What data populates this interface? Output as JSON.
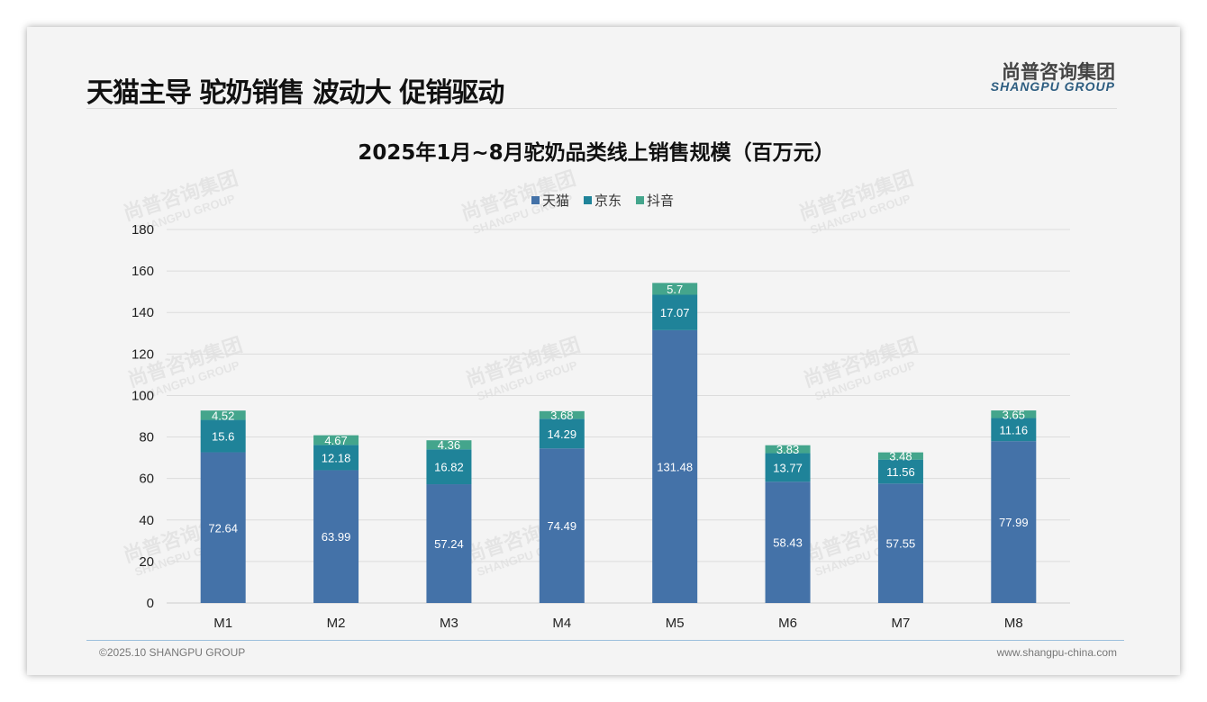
{
  "header": {
    "title": "天猫主导 驼奶销售 波动大 促销驱动",
    "logo_cn": "尚普咨询集团",
    "logo_en": "SHANGPU GROUP"
  },
  "footer": {
    "copyright": "©2025.10 SHANGPU GROUP",
    "url": "www.shangpu-china.com"
  },
  "colors": {
    "tmall": "#4472a8",
    "jd": "#1f8399",
    "douyin": "#44a58c"
  },
  "chart_data": {
    "type": "bar",
    "stacked": true,
    "title": "2025年1月~8月驼奶品类线上销售规模（百万元）",
    "categories": [
      "M1",
      "M2",
      "M3",
      "M4",
      "M5",
      "M6",
      "M7",
      "M8"
    ],
    "series": [
      {
        "name": "天猫",
        "values": [
          72.64,
          63.99,
          57.24,
          74.49,
          131.48,
          58.43,
          57.55,
          77.99
        ]
      },
      {
        "name": "京东",
        "values": [
          15.6,
          12.18,
          16.82,
          14.29,
          17.07,
          13.77,
          11.56,
          11.16
        ]
      },
      {
        "name": "抖音",
        "values": [
          4.52,
          4.67,
          4.36,
          3.68,
          5.7,
          3.83,
          3.48,
          3.65
        ]
      }
    ],
    "ylim": [
      0,
      180
    ],
    "yticks": [
      0,
      20,
      40,
      60,
      80,
      100,
      120,
      140,
      160,
      180
    ],
    "grid": true,
    "legend": "top"
  }
}
